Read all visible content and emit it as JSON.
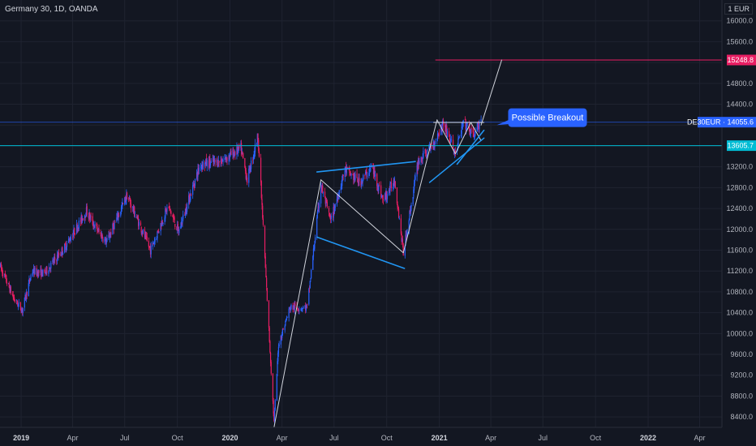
{
  "header": {
    "symbol": "Germany 30, 1D, OANDA",
    "currency": "1 EUR"
  },
  "colors": {
    "background": "#131722",
    "grid": "#1f2330",
    "bull": "#2962ff",
    "bear": "#e91e63",
    "trend_blue": "#2196f3",
    "trend_white": "#d1d4dc",
    "support": "#00bcd4",
    "target": "#e91e63",
    "price_line": "#2962ff"
  },
  "chart_data": {
    "type": "candlestick",
    "title": "Germany 30, 1D, OANDA",
    "ylim": [
      8200,
      16400
    ],
    "xlim": [
      "2018-11-25",
      "2022-05-10"
    ],
    "y_ticks": [
      8400,
      8800,
      9200,
      9600,
      10000,
      10400,
      10800,
      11200,
      11600,
      12000,
      12400,
      12800,
      13200,
      13600,
      14000,
      14400,
      14800,
      15200,
      15600,
      16000
    ],
    "y_tick_labels": [
      "8400.0",
      "8800.0",
      "9200.0",
      "9600.0",
      "10000.0",
      "10400.0",
      "10800.0",
      "11200.0",
      "11600.0",
      "12000.0",
      "12400.0",
      "12800.0",
      "13200.0",
      "13600.0",
      "14000.0",
      "14400.0",
      "14800.0",
      "15200.0",
      "15600.0",
      "16000.0"
    ],
    "x_ticks": [
      {
        "date": "2019-01-01",
        "label": "2019",
        "bold": true
      },
      {
        "date": "2019-04-01",
        "label": "Apr"
      },
      {
        "date": "2019-07-01",
        "label": "Jul"
      },
      {
        "date": "2019-10-01",
        "label": "Oct"
      },
      {
        "date": "2020-01-01",
        "label": "2020",
        "bold": true
      },
      {
        "date": "2020-04-01",
        "label": "Apr"
      },
      {
        "date": "2020-07-01",
        "label": "Jul"
      },
      {
        "date": "2020-10-01",
        "label": "Oct"
      },
      {
        "date": "2021-01-01",
        "label": "2021",
        "bold": true
      },
      {
        "date": "2021-04-01",
        "label": "Apr"
      },
      {
        "date": "2021-07-01",
        "label": "Jul"
      },
      {
        "date": "2021-10-01",
        "label": "Oct"
      },
      {
        "date": "2022-01-01",
        "label": "2022",
        "bold": true
      },
      {
        "date": "2022-04-01",
        "label": "Apr"
      }
    ],
    "price_path": [
      [
        "2018-11-25",
        11300
      ],
      [
        "2018-12-20",
        10650
      ],
      [
        "2019-01-03",
        10450
      ],
      [
        "2019-01-20",
        11200
      ],
      [
        "2019-02-10",
        11150
      ],
      [
        "2019-03-18",
        11650
      ],
      [
        "2019-04-25",
        12350
      ],
      [
        "2019-05-10",
        12050
      ],
      [
        "2019-05-30",
        11750
      ],
      [
        "2019-07-05",
        12650
      ],
      [
        "2019-08-15",
        11600
      ],
      [
        "2019-09-15",
        12450
      ],
      [
        "2019-10-03",
        11950
      ],
      [
        "2019-11-10",
        13250
      ],
      [
        "2019-12-15",
        13300
      ],
      [
        "2020-01-20",
        13550
      ],
      [
        "2020-01-31",
        12950
      ],
      [
        "2020-02-19",
        13800
      ],
      [
        "2020-03-18",
        8300
      ],
      [
        "2020-03-26",
        9800
      ],
      [
        "2020-04-15",
        10500
      ],
      [
        "2020-05-15",
        10500
      ],
      [
        "2020-06-08",
        12850
      ],
      [
        "2020-06-25",
        12150
      ],
      [
        "2020-07-20",
        13150
      ],
      [
        "2020-08-15",
        12900
      ],
      [
        "2020-09-05",
        13200
      ],
      [
        "2020-09-25",
        12550
      ],
      [
        "2020-10-15",
        12950
      ],
      [
        "2020-10-30",
        11550
      ],
      [
        "2020-11-25",
        13300
      ],
      [
        "2020-12-20",
        13600
      ],
      [
        "2021-01-08",
        14050
      ],
      [
        "2021-01-29",
        13450
      ],
      [
        "2021-02-12",
        14050
      ],
      [
        "2021-03-01",
        13800
      ],
      [
        "2021-03-15",
        14050
      ]
    ],
    "levels": [
      {
        "name": "target",
        "value": 15248.8,
        "label": "15248.8",
        "start": "2020-12-25"
      },
      {
        "name": "last-price",
        "value": 14055.6,
        "label": "DE30EUR · 14055.6",
        "start": "2018-11-25"
      },
      {
        "name": "support",
        "value": 13605.7,
        "label": "13605.7",
        "start": "2018-11-25"
      }
    ],
    "trendlines": [
      {
        "name": "lower-channel",
        "color": "blue",
        "points": [
          [
            "2020-06-01",
            11850
          ],
          [
            "2020-11-01",
            11250
          ]
        ]
      },
      {
        "name": "upper-channel",
        "color": "blue",
        "points": [
          [
            "2020-06-01",
            13100
          ],
          [
            "2020-11-20",
            13300
          ]
        ]
      },
      {
        "name": "rally-leg-1",
        "color": "white",
        "points": [
          [
            "2020-03-18",
            8200
          ],
          [
            "2020-06-08",
            12950
          ]
        ]
      },
      {
        "name": "flag-diagonal",
        "color": "white",
        "points": [
          [
            "2020-06-08",
            12950
          ],
          [
            "2020-10-30",
            11550
          ]
        ]
      },
      {
        "name": "rally-leg-2",
        "color": "white",
        "points": [
          [
            "2020-10-30",
            11550
          ],
          [
            "2020-12-28",
            14100
          ]
        ]
      },
      {
        "name": "triangle-top",
        "color": "white",
        "points": [
          [
            "2020-12-22",
            14050
          ],
          [
            "2021-03-20",
            14050
          ]
        ]
      },
      {
        "name": "triangle-down",
        "color": "white",
        "points": [
          [
            "2020-12-28",
            14100
          ],
          [
            "2021-01-29",
            13450
          ]
        ]
      },
      {
        "name": "triangle-up",
        "color": "white",
        "points": [
          [
            "2021-01-29",
            13450
          ],
          [
            "2021-02-25",
            14050
          ]
        ]
      },
      {
        "name": "triangle-end",
        "color": "white",
        "points": [
          [
            "2021-02-25",
            14050
          ],
          [
            "2021-03-15",
            13700
          ]
        ]
      },
      {
        "name": "breakout-projection",
        "color": "white",
        "points": [
          [
            "2021-03-15",
            14000
          ],
          [
            "2021-04-20",
            15248.8
          ]
        ]
      },
      {
        "name": "wedge-lower",
        "color": "blue",
        "points": [
          [
            "2020-12-15",
            12900
          ],
          [
            "2021-03-20",
            13750
          ]
        ]
      },
      {
        "name": "wedge-upper",
        "color": "blue",
        "points": [
          [
            "2021-02-01",
            13250
          ],
          [
            "2021-03-20",
            13900
          ]
        ]
      }
    ],
    "annotations": [
      {
        "text": "Possible Breakout",
        "date": "2021-04-20",
        "value": 14150
      }
    ]
  }
}
